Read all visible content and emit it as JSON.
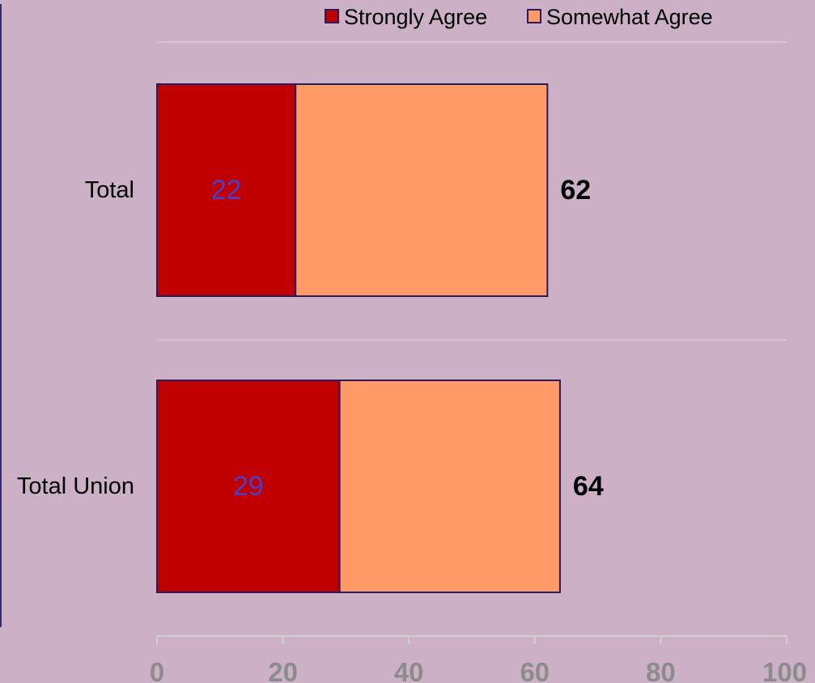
{
  "chart_data": {
    "type": "bar",
    "orientation": "horizontal",
    "stacked": true,
    "categories": [
      "Total",
      "Total Union"
    ],
    "series": [
      {
        "name": "Strongly Agree",
        "values": [
          22,
          29
        ],
        "color": "#c00000"
      },
      {
        "name": "Somewhat Agree",
        "values": [
          40,
          35
        ],
        "color": "#ff9966"
      }
    ],
    "inner_labels": [
      "22",
      "29"
    ],
    "total_labels": [
      "62",
      "64"
    ],
    "xlim": [
      0,
      100
    ],
    "x_ticks": [
      0,
      20,
      40,
      60,
      80,
      100
    ],
    "x_tick_labels": [
      "0",
      "20",
      "40",
      "60",
      "80",
      "100"
    ],
    "legend_position": "top",
    "grid": true,
    "colors": {
      "background": "#cbb0c6",
      "bar_border": "#2a1a5e",
      "inner_label": "#4b3fc9",
      "total_label": "#000000",
      "tick_label": "#8c8c8c",
      "gridline": "#d9c9d5",
      "axis_line": "#cfcfcf",
      "left_rule": "#3a2a6e"
    }
  }
}
